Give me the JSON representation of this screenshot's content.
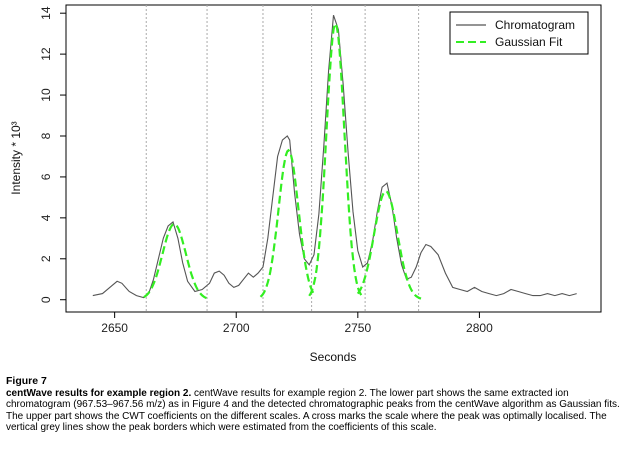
{
  "chart_data": {
    "type": "line",
    "xlabel": "Seconds",
    "ylabel": "Intensity * 10³",
    "xlim": [
      2630,
      2850
    ],
    "ylim": [
      -0.6,
      14.4
    ],
    "x_ticks": [
      2650,
      2700,
      2750,
      2800
    ],
    "y_ticks": [
      0,
      2,
      4,
      6,
      8,
      10,
      12,
      14
    ],
    "peak_borders": [
      2663,
      2688,
      2711,
      2731,
      2753,
      2775
    ],
    "legend": {
      "position": "top-right",
      "entries": [
        "Chromatogram",
        "Gaussian Fit"
      ]
    },
    "series": [
      {
        "name": "Chromatogram",
        "color": "#555555",
        "style": "solid",
        "x": [
          2641,
          2645,
          2648,
          2651,
          2653,
          2656,
          2659,
          2662,
          2664,
          2666,
          2668,
          2670,
          2672,
          2674,
          2676,
          2678,
          2680,
          2683,
          2686,
          2689,
          2691,
          2693,
          2695,
          2697,
          2699,
          2701,
          2703,
          2705,
          2707,
          2709,
          2711,
          2713,
          2715,
          2717,
          2719,
          2721,
          2722,
          2724,
          2726,
          2728,
          2730,
          2732,
          2734,
          2736,
          2738,
          2740,
          2742,
          2744,
          2746,
          2748,
          2750,
          2752,
          2754,
          2756,
          2758,
          2760,
          2762,
          2764,
          2766,
          2768,
          2770,
          2772,
          2774,
          2776,
          2778,
          2780,
          2783,
          2786,
          2789,
          2792,
          2795,
          2798,
          2801,
          2804,
          2807,
          2810,
          2813,
          2816,
          2819,
          2822,
          2825,
          2828,
          2831,
          2834,
          2837,
          2840
        ],
        "y": [
          0.2,
          0.3,
          0.6,
          0.9,
          0.8,
          0.4,
          0.2,
          0.1,
          0.3,
          1.0,
          2.0,
          3.0,
          3.6,
          3.8,
          3.0,
          1.8,
          0.9,
          0.4,
          0.5,
          0.8,
          1.3,
          1.4,
          1.2,
          0.8,
          0.6,
          0.7,
          1.0,
          1.3,
          1.1,
          1.3,
          1.6,
          3.0,
          5.0,
          7.0,
          7.8,
          8.0,
          7.8,
          5.2,
          3.2,
          2.0,
          1.7,
          2.2,
          4.2,
          7.5,
          11.2,
          13.9,
          13.2,
          10.5,
          7.2,
          4.3,
          2.4,
          1.6,
          1.8,
          2.8,
          4.3,
          5.5,
          5.7,
          4.6,
          3.0,
          1.7,
          1.0,
          1.1,
          1.6,
          2.3,
          2.7,
          2.6,
          2.2,
          1.3,
          0.6,
          0.5,
          0.4,
          0.6,
          0.4,
          0.3,
          0.2,
          0.3,
          0.5,
          0.4,
          0.3,
          0.2,
          0.2,
          0.3,
          0.2,
          0.3,
          0.2,
          0.3
        ]
      },
      {
        "name": "Gaussian Fit",
        "color": "#33ee22",
        "style": "dashed",
        "peaks": [
          {
            "center": 2674.5,
            "height": 3.7,
            "sigma": 4.8,
            "from": 2662,
            "to": 2688
          },
          {
            "center": 2721.5,
            "height": 7.3,
            "sigma": 4.1,
            "from": 2710,
            "to": 2732
          },
          {
            "center": 2740.8,
            "height": 13.5,
            "sigma": 3.7,
            "from": 2730,
            "to": 2752
          },
          {
            "center": 2761.5,
            "height": 5.3,
            "sigma": 4.8,
            "from": 2750,
            "to": 2776
          }
        ]
      }
    ]
  },
  "caption": {
    "figure_number": "Figure 7",
    "heading": "centWave results for example region 2.",
    "body": "centWave results for example region 2. The lower part shows the same extracted ion chromatogram (967.53–967.56 m/z) as in Figure 4 and the detected chromatographic peaks from the centWave algorithm as Gaussian fits. The upper part shows the CWT coefficients on the different scales. A cross marks the scale where the peak was optimally localised. The vertical grey lines show the peak borders which were estimated from the coefficients of this scale."
  }
}
